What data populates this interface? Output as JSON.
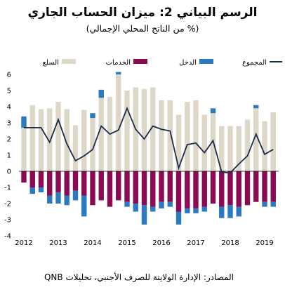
{
  "title": "الرسم البياني 2: ميزان الحساب الجاري",
  "subtitle": "(% من الناتج المحلي الإجمالي)",
  "source": "المصادر: الإدارة الولايتة للصرف الأجنبي، تحليلات QNB",
  "colors": {
    "goods": "#dcd7c6",
    "services": "#8b0a52",
    "income": "#2a79c1",
    "total": "#1c2b4a"
  },
  "chart_data": {
    "type": "bar",
    "stacked": true,
    "frequency": "quarterly",
    "x_tick_labels": [
      "2012",
      "2013",
      "2014",
      "2015",
      "2016",
      "2017",
      "2018",
      "2019"
    ],
    "ylim": [
      -4,
      6
    ],
    "y_ticks": [
      -4,
      -3,
      -2,
      -1,
      0,
      1,
      2,
      3,
      4,
      5,
      6
    ],
    "legend_placement": "top",
    "series": [
      {
        "name": "السلع",
        "kind": "bar",
        "color": "#dcd7c6",
        "values": [
          2.7,
          4.1,
          3.85,
          3.9,
          4.3,
          3.85,
          2.85,
          3.8,
          3.3,
          4.55,
          4.6,
          6.0,
          5.0,
          5.2,
          5.1,
          5.2,
          4.4,
          4.4,
          3.5,
          4.3,
          4.4,
          3.5,
          3.6,
          2.8,
          2.8,
          2.8,
          3.2,
          3.9,
          3.1,
          3.65
        ]
      },
      {
        "name": "الخدمات",
        "kind": "bar",
        "color": "#8b0a52",
        "values": [
          -0.7,
          -1.0,
          -1.0,
          -1.5,
          -1.3,
          -1.5,
          -1.2,
          -1.5,
          -2.1,
          -1.8,
          -2.2,
          -1.8,
          -1.9,
          -2.0,
          -2.1,
          -2.2,
          -1.9,
          -1.9,
          -2.5,
          -2.3,
          -2.3,
          -2.2,
          -2.0,
          -2.2,
          -2.1,
          -2.2,
          -2.1,
          -1.9,
          -1.9,
          -1.9
        ]
      },
      {
        "name": "الدخل",
        "kind": "bar",
        "color": "#2a79c1",
        "values": [
          0.7,
          -0.4,
          -0.3,
          -0.5,
          -0.7,
          -0.6,
          -0.6,
          -1.3,
          0.3,
          0.5,
          0.0,
          0.15,
          -0.3,
          -0.5,
          -1.2,
          -0.3,
          -0.4,
          -0.3,
          -0.8,
          -0.3,
          -0.3,
          -0.3,
          0.3,
          -0.7,
          -0.8,
          -0.6,
          0.0,
          0.2,
          -0.3,
          -0.3
        ]
      },
      {
        "name": "المجموع",
        "kind": "line",
        "color": "#1c2b4a",
        "values": [
          2.7,
          2.7,
          2.7,
          1.8,
          3.2,
          1.7,
          0.65,
          0.95,
          1.35,
          2.8,
          2.3,
          2.55,
          3.9,
          2.6,
          2.0,
          2.8,
          2.6,
          2.5,
          0.2,
          1.65,
          1.75,
          1.15,
          1.9,
          -0.05,
          -0.1,
          0.45,
          0.95,
          2.3,
          1.05,
          1.35
        ]
      }
    ]
  }
}
